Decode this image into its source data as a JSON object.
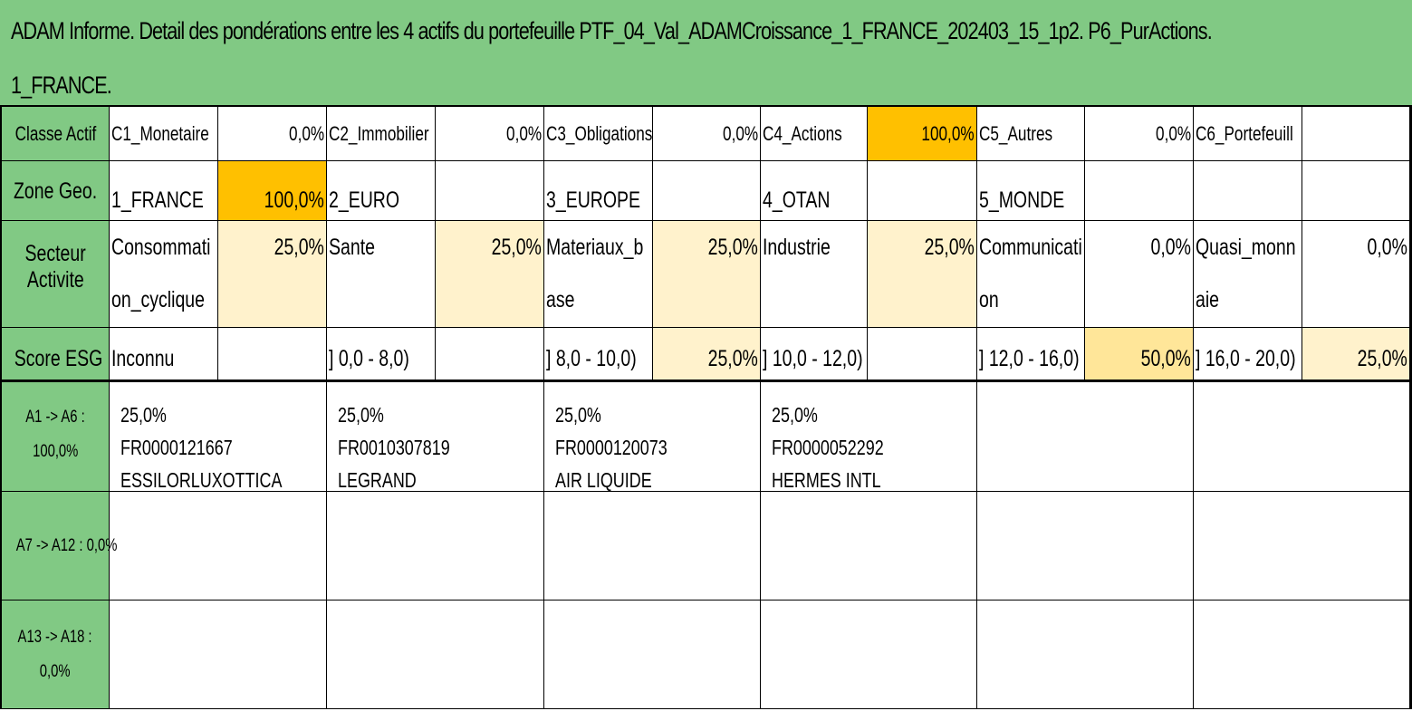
{
  "title_line1": "ADAM Informe. Detail des pondérations entre les 4 actifs du portefeuille PTF_04_Val_ADAMCroissance_1_FRANCE_202403_15_1p2. P6_PurActions.",
  "title_line2": "1_FRANCE.",
  "rows": {
    "classe": {
      "label": "Classe Actif",
      "cells": [
        {
          "name": "C1_Monetaire",
          "value": "0,0%"
        },
        {
          "name": "C2_Immobilier",
          "value": "0,0%"
        },
        {
          "name": "C3_Obligations",
          "value": "0,0%"
        },
        {
          "name": "C4_Actions",
          "value": "100,0%"
        },
        {
          "name": "C5_Autres",
          "value": "0,0%"
        },
        {
          "name": "C6_Portefeuill",
          "value": ""
        }
      ]
    },
    "zone": {
      "label": "Zone Geo.",
      "cells": [
        {
          "name": "1_FRANCE",
          "value": "100,0%"
        },
        {
          "name": "2_EURO",
          "value": ""
        },
        {
          "name": "3_EUROPE",
          "value": ""
        },
        {
          "name": "4_OTAN",
          "value": ""
        },
        {
          "name": "5_MONDE",
          "value": ""
        },
        {
          "name": "",
          "value": ""
        }
      ]
    },
    "secteur": {
      "label_l1": "Secteur",
      "label_l2": "Activite",
      "cells": [
        {
          "name_l1": "Consommati",
          "name_l2": "on_cyclique",
          "value": "25,0%"
        },
        {
          "name_l1": "Sante",
          "name_l2": "",
          "value": "25,0%"
        },
        {
          "name_l1": "Materiaux_b",
          "name_l2": "ase",
          "value": "25,0%"
        },
        {
          "name_l1": "Industrie",
          "name_l2": "",
          "value": "25,0%"
        },
        {
          "name_l1": "Communicati",
          "name_l2": "on",
          "value": "0,0%"
        },
        {
          "name_l1": "Quasi_monn",
          "name_l2": "aie",
          "value": "0,0%"
        }
      ]
    },
    "esg": {
      "label": "Score ESG",
      "cells": [
        {
          "name": "Inconnu",
          "value": ""
        },
        {
          "name": "] 0,0 - 8,0)",
          "value": ""
        },
        {
          "name": "] 8,0 - 10,0)",
          "value": "25,0%"
        },
        {
          "name": "] 10,0 - 12,0)",
          "value": ""
        },
        {
          "name": "] 12,0 - 16,0)",
          "value": "50,0%"
        },
        {
          "name": "] 16,0 - 20,0)",
          "value": "25,0%"
        }
      ]
    }
  },
  "asset_groups": [
    {
      "label_l1": "A1 -> A6 :",
      "label_l2": "100,0%",
      "assets": [
        {
          "line1": "25,0% FR0000121667",
          "line2": "ESSILORLUXOTTICA"
        },
        {
          "line1": "25,0% FR0010307819",
          "line2": "LEGRAND"
        },
        {
          "line1": "25,0% FR0000120073",
          "line2": "AIR LIQUIDE"
        },
        {
          "line1": "25,0% FR0000052292",
          "line2": "HERMES INTL"
        },
        {
          "line1": "",
          "line2": ""
        },
        {
          "line1": "",
          "line2": ""
        }
      ]
    },
    {
      "label_l1": "A7 -> A12 : 0,0%",
      "label_l2": "",
      "assets": []
    },
    {
      "label_l1": "A13 -> A18 :",
      "label_l2": "0,0%",
      "assets": []
    }
  ],
  "colors": {
    "header_green": "#81c984",
    "highlight_orange": "#ffc000",
    "highlight_light": "#fff2cc",
    "highlight_mid": "#ffe699"
  }
}
